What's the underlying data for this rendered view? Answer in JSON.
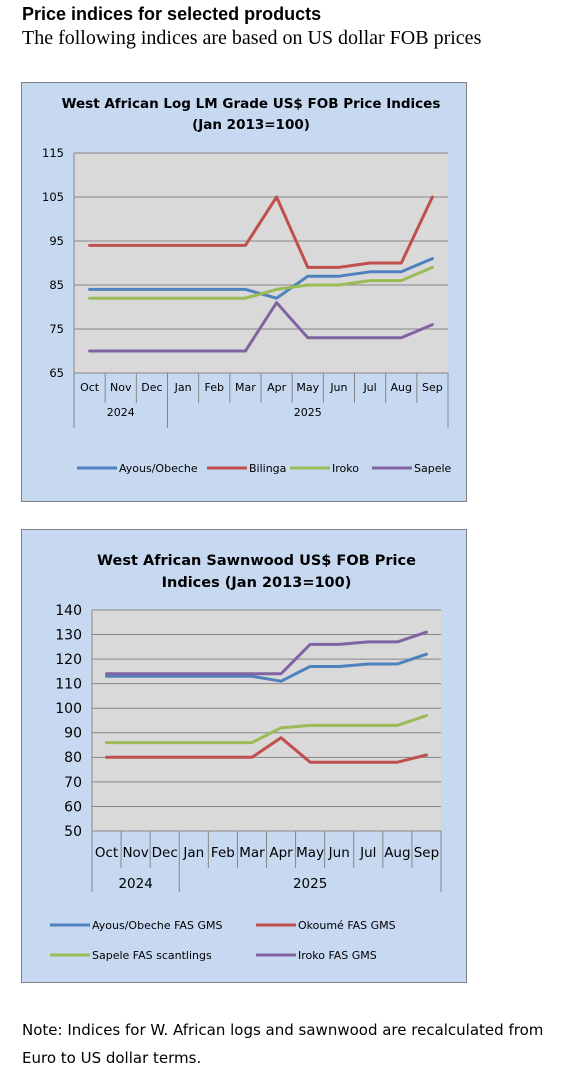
{
  "page": {
    "heading": "Price indices for selected products",
    "subheading": "The following indices are based on US dollar FOB prices",
    "note": "Note: Indices for W. African logs and sawnwood are recalculated from Euro to US dollar terms."
  },
  "chart_data": [
    {
      "type": "line",
      "title_lines": [
        "West African Log LM Grade US$ FOB Price Indices",
        "(Jan 2013=100)"
      ],
      "categories": [
        "Oct",
        "Nov",
        "Dec",
        "Jan",
        "Feb",
        "Mar",
        "Apr",
        "May",
        "Jun",
        "Jul",
        "Aug",
        "Sep"
      ],
      "year_groups": [
        {
          "label": "2024",
          "count": 3
        },
        {
          "label": "2025",
          "count": 9
        }
      ],
      "ylim": [
        65,
        115
      ],
      "yticks": [
        65,
        75,
        85,
        95,
        105,
        115
      ],
      "grid": true,
      "legend": "bottom",
      "series": [
        {
          "name": "Ayous/Obeche",
          "color": "#4f81bd",
          "values": [
            84,
            84,
            84,
            84,
            84,
            84,
            82,
            87,
            87,
            88,
            88,
            91
          ]
        },
        {
          "name": "Bilinga",
          "color": "#c0504d",
          "values": [
            94,
            94,
            94,
            94,
            94,
            94,
            105,
            89,
            89,
            90,
            90,
            105
          ]
        },
        {
          "name": "Iroko",
          "color": "#9bbb59",
          "values": [
            82,
            82,
            82,
            82,
            82,
            82,
            84,
            85,
            85,
            86,
            86,
            89
          ]
        },
        {
          "name": "Sapele",
          "color": "#8064a2",
          "values": [
            70,
            70,
            70,
            70,
            70,
            70,
            81,
            73,
            73,
            73,
            73,
            76
          ]
        }
      ]
    },
    {
      "type": "line",
      "title_lines": [
        "West African Sawnwood US$ FOB Price",
        "Indices (Jan 2013=100)"
      ],
      "categories": [
        "Oct",
        "Nov",
        "Dec",
        "Jan",
        "Feb",
        "Mar",
        "Apr",
        "May",
        "Jun",
        "Jul",
        "Aug",
        "Sep"
      ],
      "year_groups": [
        {
          "label": "2024",
          "count": 3
        },
        {
          "label": "2025",
          "count": 9
        }
      ],
      "ylim": [
        50,
        140
      ],
      "yticks": [
        50,
        60,
        70,
        80,
        90,
        100,
        110,
        120,
        130,
        140
      ],
      "grid": true,
      "legend": "bottom",
      "series": [
        {
          "name": "Ayous/Obeche  FAS GMS",
          "color": "#4f81bd",
          "values": [
            113,
            113,
            113,
            113,
            113,
            113,
            111,
            117,
            117,
            118,
            118,
            122
          ]
        },
        {
          "name": "Okoumé  FAS GMS",
          "color": "#c0504d",
          "values": [
            80,
            80,
            80,
            80,
            80,
            80,
            88,
            78,
            78,
            78,
            78,
            81
          ]
        },
        {
          "name": "Sapele FAS scantlings",
          "color": "#9bbb59",
          "values": [
            86,
            86,
            86,
            86,
            86,
            86,
            92,
            93,
            93,
            93,
            93,
            97
          ]
        },
        {
          "name": "Iroko FAS GMS",
          "color": "#8064a2",
          "values": [
            114,
            114,
            114,
            114,
            114,
            114,
            114,
            126,
            126,
            127,
            127,
            131
          ]
        }
      ]
    }
  ]
}
